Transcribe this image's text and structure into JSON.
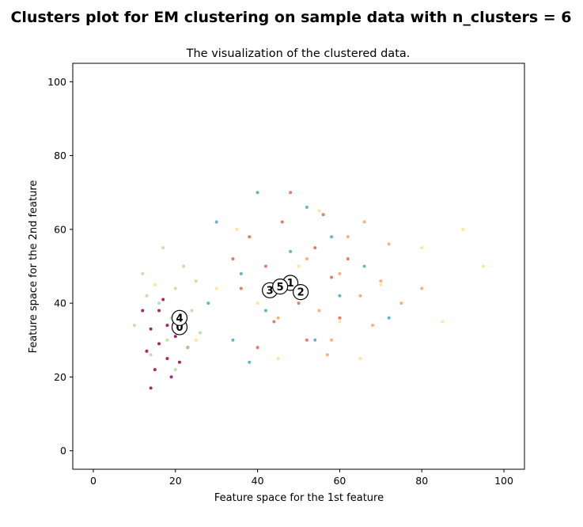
{
  "figure": {
    "suptitle": "Clusters plot for EM clustering on sample data with n_clusters = 6"
  },
  "chart_data": {
    "type": "scatter",
    "title": "The visualization of the clustered data.",
    "xlabel": "Feature space for the 1st feature",
    "ylabel": "Feature space for the 2nd feature",
    "xlim": [
      -5,
      105
    ],
    "ylim": [
      -5,
      105
    ],
    "xticks": [
      0,
      20,
      40,
      60,
      80,
      100
    ],
    "yticks": [
      0,
      20,
      40,
      60,
      80,
      100
    ],
    "xtick_labels": [
      "0",
      "20",
      "40",
      "60",
      "80",
      "100"
    ],
    "ytick_labels": [
      "0",
      "20",
      "40",
      "60",
      "80",
      "100"
    ],
    "grid": false,
    "legend": "none",
    "clusters": [
      {
        "label": "0",
        "color": "#9e0142",
        "center": [
          21,
          33.5
        ],
        "sample_points": [
          [
            12,
            38
          ],
          [
            14,
            33
          ],
          [
            16,
            29
          ],
          [
            18,
            25
          ],
          [
            15,
            22
          ],
          [
            20,
            31
          ],
          [
            22,
            36
          ],
          [
            17,
            41
          ],
          [
            13,
            27
          ],
          [
            19,
            20
          ],
          [
            23,
            28
          ],
          [
            14,
            17
          ],
          [
            18,
            34
          ],
          [
            21,
            24
          ],
          [
            16,
            38
          ]
        ]
      },
      {
        "label": "1",
        "color": "#e4644b",
        "center": [
          48,
          45.5
        ],
        "sample_points": [
          [
            38,
            58
          ],
          [
            42,
            50
          ],
          [
            46,
            62
          ],
          [
            50,
            40
          ],
          [
            54,
            55
          ],
          [
            58,
            47
          ],
          [
            44,
            35
          ],
          [
            52,
            30
          ],
          [
            36,
            44
          ],
          [
            60,
            36
          ],
          [
            48,
            70
          ],
          [
            40,
            28
          ],
          [
            56,
            64
          ],
          [
            62,
            52
          ],
          [
            34,
            52
          ]
        ]
      },
      {
        "label": "2",
        "color": "#f3a36a",
        "center": [
          50.5,
          43
        ],
        "sample_points": [
          [
            48,
            44
          ],
          [
            55,
            38
          ],
          [
            60,
            48
          ],
          [
            65,
            42
          ],
          [
            52,
            52
          ],
          [
            58,
            30
          ],
          [
            70,
            46
          ],
          [
            45,
            36
          ],
          [
            62,
            58
          ],
          [
            75,
            40
          ],
          [
            68,
            34
          ],
          [
            80,
            44
          ],
          [
            57,
            26
          ],
          [
            72,
            56
          ],
          [
            66,
            62
          ]
        ]
      },
      {
        "label": "3",
        "color": "#fee08b",
        "center": [
          43,
          43.5
        ],
        "sample_points": [
          [
            30,
            44
          ],
          [
            40,
            40
          ],
          [
            50,
            50
          ],
          [
            60,
            35
          ],
          [
            70,
            45
          ],
          [
            80,
            55
          ],
          [
            90,
            60
          ],
          [
            35,
            60
          ],
          [
            45,
            25
          ],
          [
            55,
            65
          ],
          [
            25,
            30
          ],
          [
            85,
            35
          ],
          [
            15,
            45
          ],
          [
            65,
            25
          ],
          [
            95,
            50
          ]
        ]
      },
      {
        "label": "4",
        "color": "#b7dd98",
        "center": [
          21,
          36
        ],
        "sample_points": [
          [
            12,
            48
          ],
          [
            16,
            40
          ],
          [
            20,
            44
          ],
          [
            24,
            38
          ],
          [
            18,
            30
          ],
          [
            14,
            26
          ],
          [
            22,
            50
          ],
          [
            10,
            34
          ],
          [
            26,
            32
          ],
          [
            17,
            55
          ],
          [
            20,
            22
          ],
          [
            13,
            42
          ],
          [
            25,
            46
          ],
          [
            19,
            36
          ],
          [
            23,
            28
          ]
        ]
      },
      {
        "label": "5",
        "color": "#4aa8b8",
        "center": [
          45.5,
          44.5
        ],
        "sample_points": [
          [
            30,
            62
          ],
          [
            36,
            48
          ],
          [
            42,
            38
          ],
          [
            48,
            54
          ],
          [
            54,
            30
          ],
          [
            40,
            70
          ],
          [
            60,
            42
          ],
          [
            66,
            50
          ],
          [
            34,
            30
          ],
          [
            46,
            44
          ],
          [
            28,
            40
          ],
          [
            72,
            36
          ],
          [
            52,
            66
          ],
          [
            38,
            24
          ],
          [
            58,
            58
          ]
        ]
      }
    ]
  }
}
